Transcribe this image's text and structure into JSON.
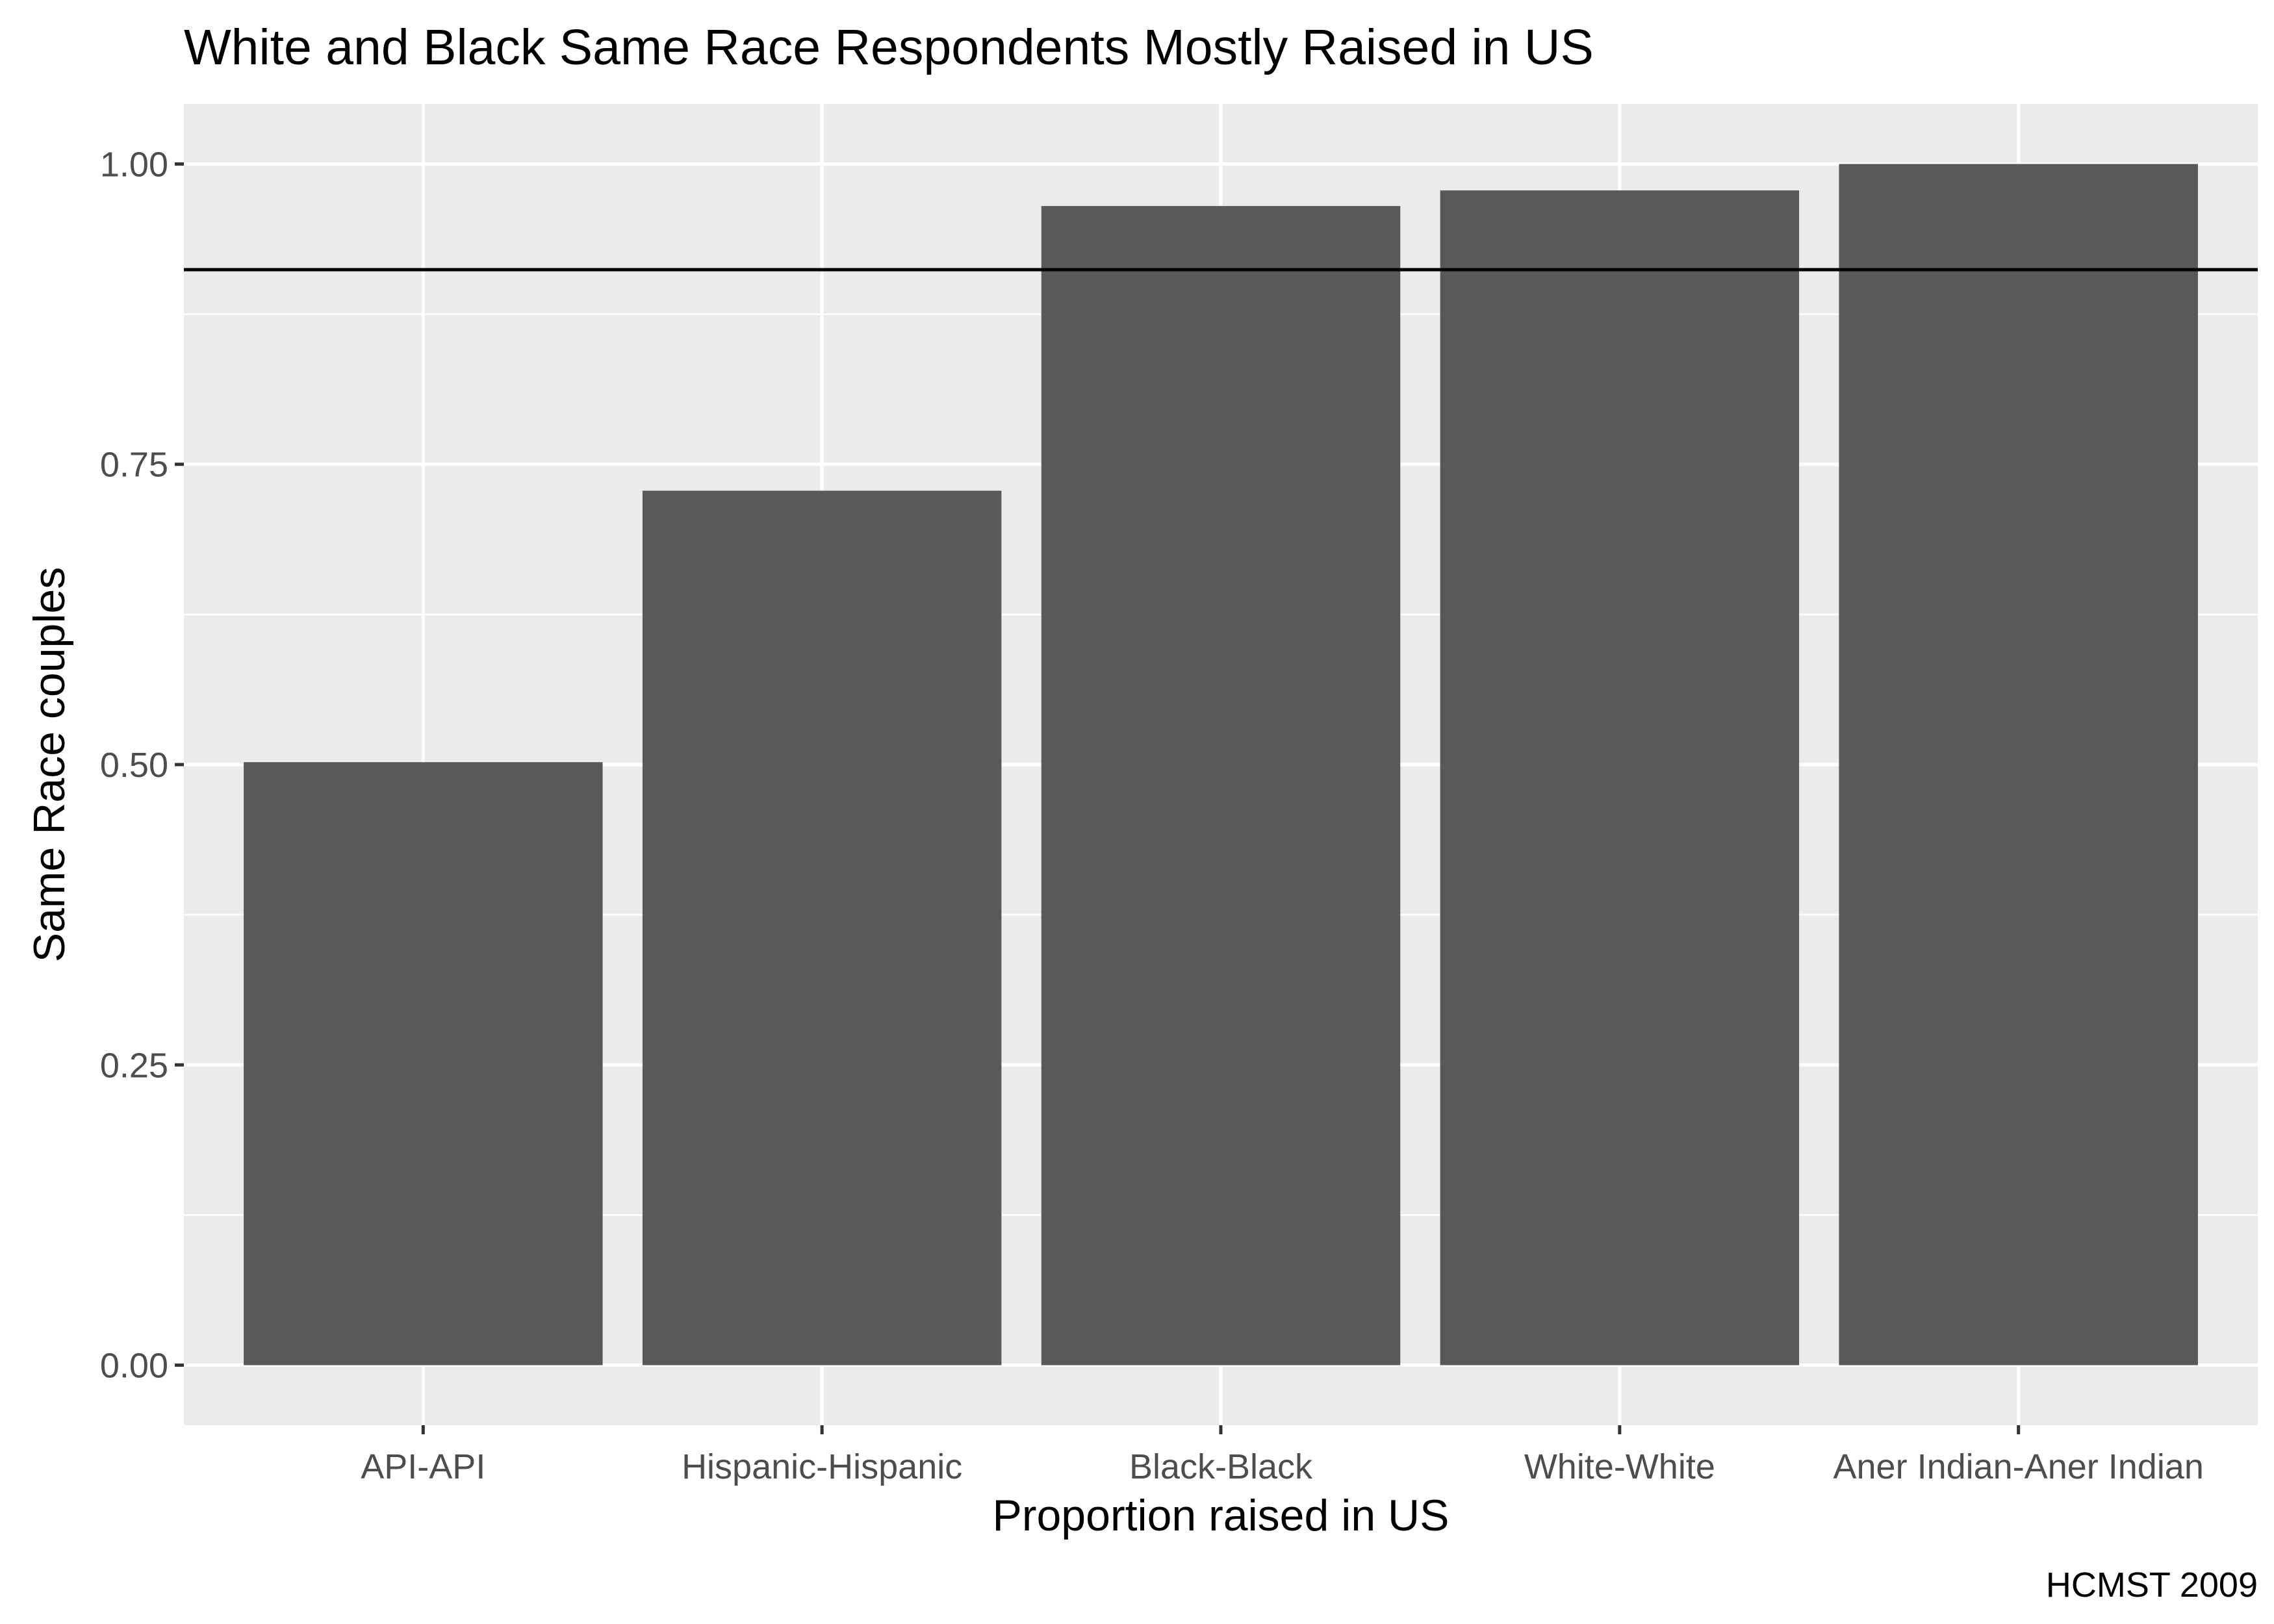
{
  "chart_data": {
    "type": "bar",
    "title": "White and Black Same Race Respondents Mostly Raised in US",
    "xlabel": "Proportion raised in US",
    "ylabel": "Same Race couples",
    "caption": "HCMST 2009",
    "categories": [
      "API-API",
      "Hispanic-Hispanic",
      "Black-Black",
      "White-White",
      "Aner Indian-Aner Indian"
    ],
    "values": [
      0.502,
      0.728,
      0.965,
      0.978,
      1.0
    ],
    "reference_line": 0.912,
    "ylim": [
      -0.05,
      1.05
    ],
    "yticks": [
      "0.00",
      "0.25",
      "0.50",
      "0.75",
      "1.00"
    ],
    "grid": true,
    "colors": {
      "panel": "#ebebeb",
      "grid": "#ffffff",
      "bar": "#595959",
      "ref_line": "#000000",
      "tick": "#333333"
    }
  }
}
